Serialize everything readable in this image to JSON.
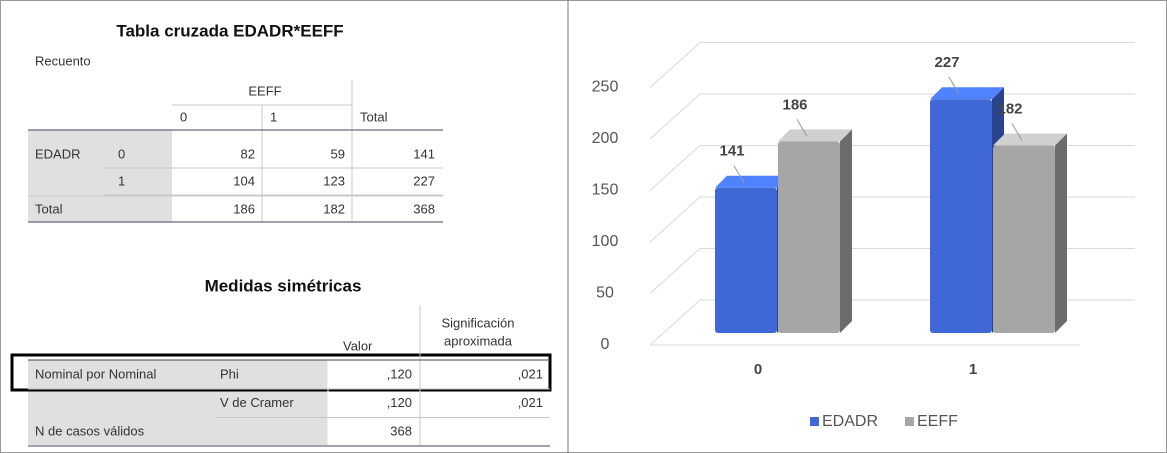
{
  "crosstab": {
    "title": "Tabla cruzada EDADR*EEFF",
    "subtitle": "Recuento",
    "col_group": "EEFF",
    "col_headers": [
      "0",
      "1",
      "Total"
    ],
    "row_var": "EDADR",
    "rows": [
      {
        "label": "0",
        "cells": [
          82,
          59,
          141
        ]
      },
      {
        "label": "1",
        "cells": [
          104,
          123,
          227
        ]
      }
    ],
    "total": {
      "label": "Total",
      "cells": [
        186,
        182,
        368
      ]
    }
  },
  "symmetric": {
    "title": "Medidas simétricas",
    "value_header": "Valor",
    "sig_header": [
      "Significación",
      "aproximada"
    ],
    "rows": [
      {
        "group": "Nominal por Nominal",
        "measure": "Phi",
        "value": ",120",
        "sig": ",021"
      },
      {
        "measure": "V de Cramer",
        "value": ",120",
        "sig": ",021"
      },
      {
        "group": "N de casos válidos",
        "value": "368"
      }
    ]
  },
  "chart_data": {
    "type": "bar3d",
    "categories": [
      "0",
      "1"
    ],
    "series": [
      {
        "name": "EDADR",
        "color": "#3f68d6",
        "values": [
          141,
          227
        ]
      },
      {
        "name": "EEFF",
        "color": "#a6a6a6",
        "values": [
          186,
          182
        ]
      }
    ],
    "ylim": [
      0,
      250
    ],
    "yticks": [
      0,
      50,
      100,
      150,
      200,
      250
    ],
    "grid": true,
    "legend": "bottom"
  }
}
